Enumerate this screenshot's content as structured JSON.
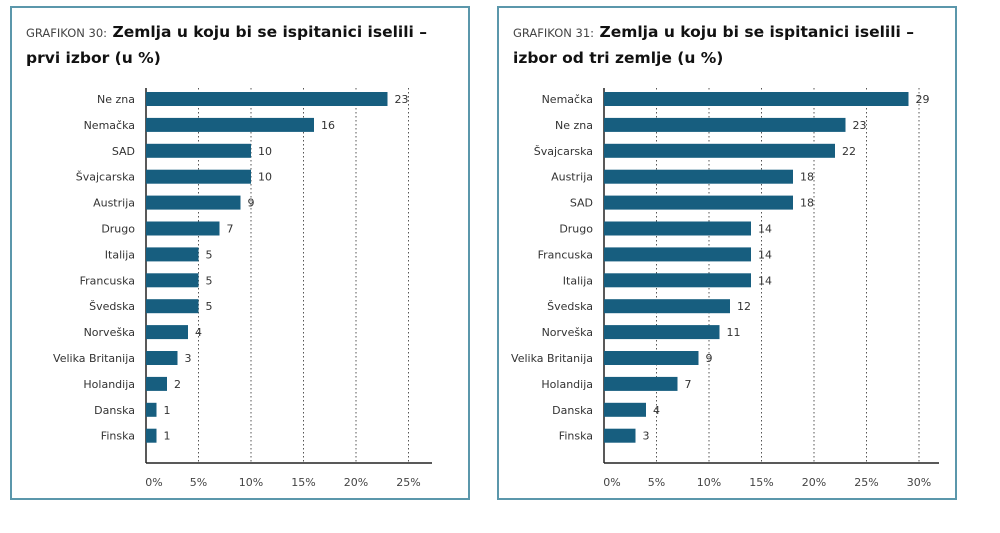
{
  "chart_data": [
    {
      "type": "bar",
      "orientation": "horizontal",
      "label": "GRAFIKON 30:",
      "title": "Zemlja u koju bi se ispitanici iselili – prvi izbor (u %)",
      "categories": [
        "Ne zna",
        "Nemačka",
        "SAD",
        "Švajcarska",
        "Austrija",
        "Drugo",
        "Italija",
        "Francuska",
        "Švedska",
        "Norveška",
        "Velika Britanija",
        "Holandija",
        "Danska",
        "Finska"
      ],
      "values": [
        23,
        16,
        10,
        10,
        9,
        7,
        5,
        5,
        5,
        4,
        3,
        2,
        1,
        1
      ],
      "xticks": [
        "0%",
        "5%",
        "10%",
        "15%",
        "20%",
        "25%"
      ],
      "xlim": [
        0,
        27
      ],
      "grid": "vertical dotted",
      "bar_color": "#175e7f"
    },
    {
      "type": "bar",
      "orientation": "horizontal",
      "label": "GRAFIKON 31:",
      "title": "Zemlja u koju bi se ispitanici iselili – izbor od tri zemlje (u %)",
      "categories": [
        "Nemačka",
        "Ne zna",
        "Švajcarska",
        "Austrija",
        "SAD",
        "Drugo",
        "Francuska",
        "Italija",
        "Švedska",
        "Norveška",
        "Velika Britanija",
        "Holandija",
        "Danska",
        "Finska"
      ],
      "values": [
        29,
        23,
        22,
        18,
        18,
        14,
        14,
        14,
        12,
        11,
        9,
        7,
        4,
        3
      ],
      "xticks": [
        "0%",
        "5%",
        "10%",
        "15%",
        "20%",
        "25%",
        "30%"
      ],
      "xlim": [
        0,
        31
      ],
      "grid": "vertical dotted",
      "bar_color": "#175e7f"
    }
  ]
}
